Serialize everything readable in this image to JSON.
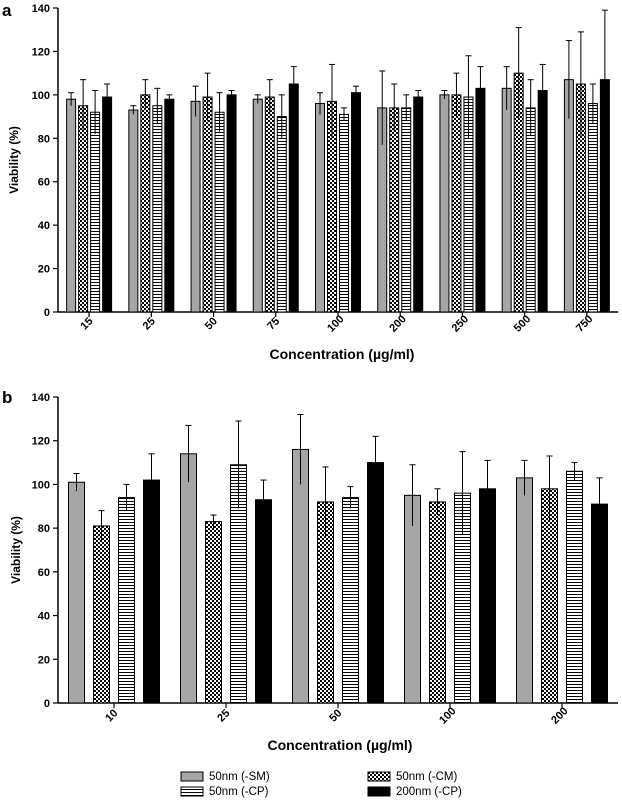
{
  "colors": {
    "sm": "#a6a6a6",
    "black": "#000000",
    "white": "#ffffff"
  },
  "legend": {
    "items": [
      {
        "key": "sm",
        "label": "50nm (-SM)"
      },
      {
        "key": "cm",
        "label": "50nm (-CM)"
      },
      {
        "key": "cp",
        "label": "50nm (-CP)"
      },
      {
        "key": "big",
        "label": "200nm (-CP)"
      }
    ]
  },
  "chart_data": [
    {
      "panel": "a",
      "type": "bar",
      "title": "",
      "xlabel": "Concentration (µg/ml)",
      "ylabel": "Viability (%)",
      "ylim": [
        0,
        140
      ],
      "yticks": [
        "0",
        "20",
        "40",
        "60",
        "80",
        "100",
        "120",
        "140"
      ],
      "categories": [
        "15",
        "25",
        "50",
        "75",
        "100",
        "200",
        "250",
        "500",
        "750"
      ],
      "series": [
        {
          "name": "50nm (-SM)",
          "key": "sm",
          "values": [
            98,
            93,
            97,
            98,
            96,
            94,
            100,
            103,
            107
          ],
          "errors": [
            3,
            2,
            7,
            2,
            5,
            17,
            2,
            10,
            18
          ]
        },
        {
          "name": "50nm (-CM)",
          "key": "cm",
          "values": [
            95,
            100,
            99,
            99,
            97,
            94,
            100,
            110,
            105
          ],
          "errors": [
            12,
            7,
            11,
            8,
            17,
            11,
            10,
            21,
            24
          ]
        },
        {
          "name": "50nm (-CP)",
          "key": "cp",
          "values": [
            92,
            95,
            92,
            90,
            91,
            94,
            99,
            94,
            96
          ],
          "errors": [
            10,
            8,
            9,
            10,
            3,
            6,
            19,
            13,
            9
          ]
        },
        {
          "name": "200nm (-CP)",
          "key": "big",
          "values": [
            99,
            98,
            100,
            105,
            101,
            99,
            103,
            102,
            107
          ],
          "errors": [
            6,
            2,
            2,
            8,
            3,
            3,
            10,
            12,
            32
          ]
        }
      ]
    },
    {
      "panel": "b",
      "type": "bar",
      "title": "",
      "xlabel": "Concentration (µg/ml)",
      "ylabel": "Viability (%)",
      "ylim": [
        0,
        140
      ],
      "yticks": [
        "0",
        "20",
        "40",
        "60",
        "80",
        "100",
        "120",
        "140"
      ],
      "categories": [
        "10",
        "25",
        "50",
        "100",
        "200"
      ],
      "series": [
        {
          "name": "50nm (-SM)",
          "key": "sm",
          "values": [
            101,
            114,
            116,
            95,
            103
          ],
          "errors": [
            4,
            13,
            16,
            14,
            8
          ]
        },
        {
          "name": "50nm (-CM)",
          "key": "cm",
          "values": [
            81,
            83,
            92,
            92,
            98
          ],
          "errors": [
            7,
            3,
            16,
            6,
            15
          ]
        },
        {
          "name": "50nm (-CP)",
          "key": "cp",
          "values": [
            94,
            109,
            94,
            96,
            106
          ],
          "errors": [
            6,
            20,
            5,
            19,
            4
          ]
        },
        {
          "name": "200nm (-CP)",
          "key": "big",
          "values": [
            102,
            93,
            110,
            98,
            91
          ],
          "errors": [
            12,
            9,
            12,
            13,
            12
          ]
        }
      ]
    }
  ]
}
